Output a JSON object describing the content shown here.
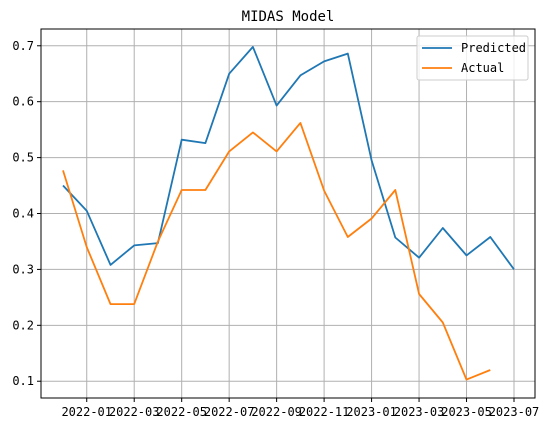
{
  "chart_data": {
    "type": "line",
    "title": "MIDAS Model",
    "xlabel": "",
    "ylabel": "",
    "x": [
      "2021-12",
      "2022-01",
      "2022-02",
      "2022-03",
      "2022-04",
      "2022-05",
      "2022-06",
      "2022-07",
      "2022-08",
      "2022-09",
      "2022-10",
      "2022-11",
      "2022-12",
      "2023-01",
      "2023-02",
      "2023-03",
      "2023-04",
      "2023-05",
      "2023-06",
      "2023-07"
    ],
    "x_ticks": [
      "2022-01",
      "2022-03",
      "2022-05",
      "2022-07",
      "2022-09",
      "2022-11",
      "2023-01",
      "2023-03",
      "2023-05",
      "2023-07"
    ],
    "y_ticks": [
      0.1,
      0.2,
      0.3,
      0.4,
      0.5,
      0.6,
      0.7
    ],
    "ylim": [
      0.07,
      0.73
    ],
    "grid": true,
    "legend_position": "top-right",
    "series": [
      {
        "name": "Predicted",
        "color": "#1f77b4",
        "values": [
          0.45,
          0.405,
          0.308,
          0.343,
          0.347,
          0.532,
          0.526,
          0.65,
          0.698,
          0.593,
          0.647,
          0.672,
          0.686,
          0.495,
          0.357,
          0.321,
          0.374,
          0.325,
          0.358,
          0.3
        ]
      },
      {
        "name": "Actual",
        "color": "#ff7f0e",
        "values": [
          0.477,
          0.34,
          0.238,
          0.238,
          0.35,
          0.442,
          0.442,
          0.511,
          0.545,
          0.511,
          0.562,
          0.441,
          0.358,
          0.391,
          0.442,
          0.256,
          0.205,
          0.103,
          0.12,
          null
        ]
      }
    ]
  }
}
